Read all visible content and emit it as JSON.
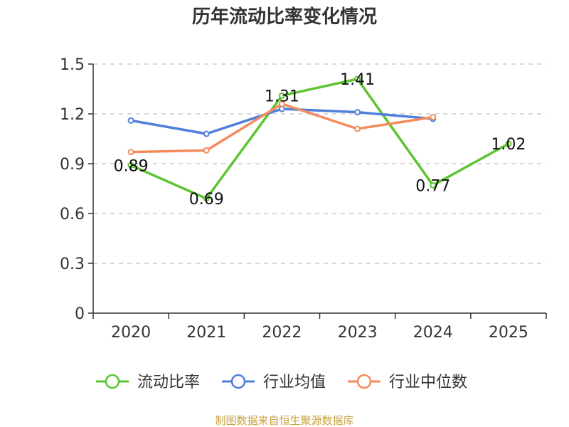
{
  "chart_data": {
    "type": "line",
    "title": "历年流动比率变化情况",
    "categories": [
      "2020",
      "2021",
      "2022",
      "2023",
      "2024",
      "2025"
    ],
    "ylim": [
      0,
      1.5
    ],
    "yticks": [
      "0",
      "0.3",
      "0.6",
      "0.9",
      "1.2",
      "1.5"
    ],
    "grid": true,
    "legend_position": "bottom",
    "series": [
      {
        "name": "流动比率",
        "color": "#5cc531",
        "values": [
          0.89,
          0.69,
          1.31,
          1.41,
          0.77,
          1.02
        ],
        "labels": [
          "0.89",
          "0.69",
          "1.31",
          "1.41",
          "0.77",
          "1.02"
        ]
      },
      {
        "name": "行业均值",
        "color": "#4f7fda",
        "values": [
          1.16,
          1.08,
          1.23,
          1.21,
          1.17,
          null
        ]
      },
      {
        "name": "行业中位数",
        "color": "#f58b5d",
        "values": [
          0.97,
          0.98,
          1.26,
          1.11,
          1.18,
          null
        ]
      }
    ],
    "source": "制图数据来自恒生聚源数据库"
  }
}
